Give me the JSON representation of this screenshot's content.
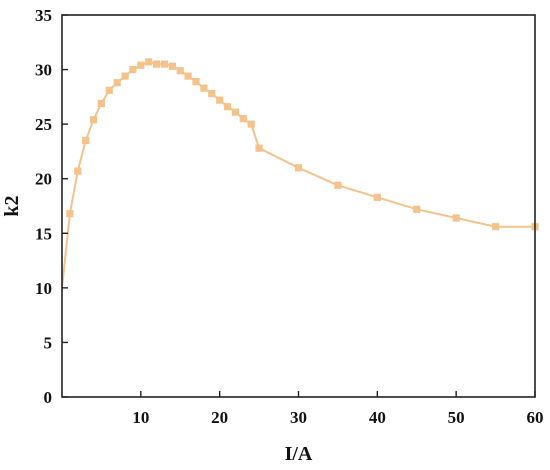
{
  "chart_data": {
    "type": "line",
    "title": "",
    "xlabel": "I/A",
    "ylabel": "k2",
    "xlim": [
      0,
      60
    ],
    "ylim": [
      0,
      35
    ],
    "x_ticks": [
      10,
      20,
      30,
      40,
      50,
      60
    ],
    "y_ticks": [
      0,
      5,
      10,
      15,
      20,
      25,
      30,
      35
    ],
    "grid": false,
    "legend": "none",
    "series_color": "#F4C28C",
    "series": [
      {
        "x": [
          0,
          1,
          2,
          3,
          4,
          5,
          6,
          7,
          8,
          9,
          10,
          11,
          12,
          13,
          14,
          15,
          16,
          17,
          18,
          19,
          20,
          21,
          22,
          23,
          24,
          25,
          30,
          35,
          40,
          45,
          50,
          55,
          60
        ],
        "y": [
          10.0,
          16.8,
          20.7,
          23.5,
          25.4,
          26.9,
          28.1,
          28.8,
          29.4,
          30.0,
          30.4,
          30.7,
          30.5,
          30.5,
          30.3,
          29.9,
          29.4,
          28.9,
          28.3,
          27.8,
          27.2,
          26.6,
          26.1,
          25.5,
          25.0,
          22.8,
          21.0,
          19.4,
          18.3,
          17.2,
          16.4,
          15.6,
          15.6
        ]
      }
    ]
  }
}
